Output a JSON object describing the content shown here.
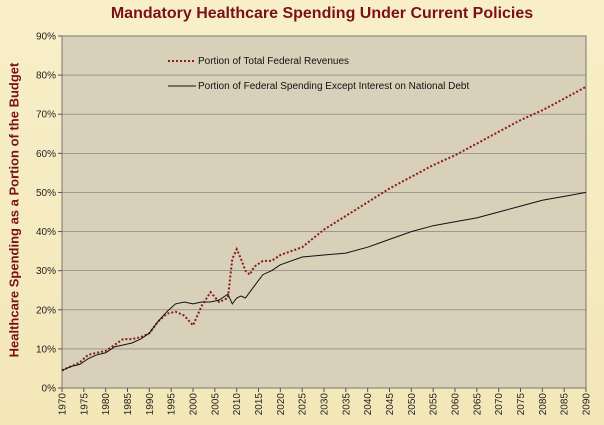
{
  "chart_data": {
    "type": "line",
    "title": "Mandatory Healthcare  Spending Under Current Policies",
    "ylabel": "Healthcare Spending as a Portion of the Budget",
    "xlabel": "",
    "xlim": [
      1970,
      2090
    ],
    "ylim": [
      0,
      90
    ],
    "y_ticks": [
      "0%",
      "10%",
      "20%",
      "30%",
      "40%",
      "50%",
      "60%",
      "70%",
      "80%",
      "90%"
    ],
    "x_ticks": [
      "1970",
      "1975",
      "1980",
      "1985",
      "1990",
      "1995",
      "2000",
      "2005",
      "2010",
      "2015",
      "2020",
      "2025",
      "2030",
      "2035",
      "2040",
      "2045",
      "2050",
      "2055",
      "2060",
      "2065",
      "2070",
      "2075",
      "2080",
      "2085",
      "2090"
    ],
    "grid": "horizontal",
    "legend_position": "top-left",
    "series": [
      {
        "name": "Portion of Total Federal Revenues",
        "style": "dotted",
        "color": "#8b1a1a",
        "points": [
          [
            1970,
            4.5
          ],
          [
            1972,
            5.5
          ],
          [
            1974,
            6.5
          ],
          [
            1976,
            8.5
          ],
          [
            1978,
            9.0
          ],
          [
            1980,
            9.5
          ],
          [
            1982,
            11.0
          ],
          [
            1984,
            12.5
          ],
          [
            1986,
            12.5
          ],
          [
            1988,
            13.0
          ],
          [
            1990,
            14.0
          ],
          [
            1992,
            17.0
          ],
          [
            1994,
            19.0
          ],
          [
            1996,
            19.5
          ],
          [
            1998,
            18.5
          ],
          [
            2000,
            16.0
          ],
          [
            2002,
            21.0
          ],
          [
            2004,
            24.5
          ],
          [
            2006,
            22.0
          ],
          [
            2008,
            23.0
          ],
          [
            2009,
            33.0
          ],
          [
            2010,
            35.5
          ],
          [
            2011,
            33.0
          ],
          [
            2012,
            30.0
          ],
          [
            2013,
            29.0
          ],
          [
            2014,
            31.0
          ],
          [
            2016,
            32.5
          ],
          [
            2018,
            32.5
          ],
          [
            2020,
            34.0
          ],
          [
            2025,
            36.0
          ],
          [
            2030,
            40.5
          ],
          [
            2035,
            44.0
          ],
          [
            2040,
            47.5
          ],
          [
            2045,
            51.0
          ],
          [
            2050,
            54.0
          ],
          [
            2055,
            57.0
          ],
          [
            2060,
            59.5
          ],
          [
            2065,
            62.5
          ],
          [
            2070,
            65.5
          ],
          [
            2075,
            68.5
          ],
          [
            2080,
            71.0
          ],
          [
            2085,
            74.0
          ],
          [
            2090,
            77.0
          ]
        ]
      },
      {
        "name": "Portion of Federal Spending Except Interest on National Debt",
        "style": "solid",
        "color": "#111111",
        "points": [
          [
            1970,
            4.5
          ],
          [
            1972,
            5.5
          ],
          [
            1974,
            6.0
          ],
          [
            1976,
            7.5
          ],
          [
            1978,
            8.5
          ],
          [
            1980,
            9.0
          ],
          [
            1982,
            10.5
          ],
          [
            1984,
            11.0
          ],
          [
            1986,
            11.5
          ],
          [
            1988,
            12.5
          ],
          [
            1990,
            14.0
          ],
          [
            1992,
            17.0
          ],
          [
            1994,
            19.5
          ],
          [
            1996,
            21.5
          ],
          [
            1998,
            22.0
          ],
          [
            2000,
            21.5
          ],
          [
            2002,
            22.0
          ],
          [
            2004,
            22.0
          ],
          [
            2006,
            22.5
          ],
          [
            2008,
            24.0
          ],
          [
            2009,
            21.5
          ],
          [
            2010,
            23.0
          ],
          [
            2011,
            23.5
          ],
          [
            2012,
            23.0
          ],
          [
            2014,
            26.0
          ],
          [
            2016,
            29.0
          ],
          [
            2018,
            30.0
          ],
          [
            2020,
            31.5
          ],
          [
            2025,
            33.5
          ],
          [
            2030,
            34.0
          ],
          [
            2035,
            34.5
          ],
          [
            2040,
            36.0
          ],
          [
            2045,
            38.0
          ],
          [
            2050,
            40.0
          ],
          [
            2055,
            41.5
          ],
          [
            2060,
            42.5
          ],
          [
            2065,
            43.5
          ],
          [
            2070,
            45.0
          ],
          [
            2075,
            46.5
          ],
          [
            2080,
            48.0
          ],
          [
            2085,
            49.0
          ],
          [
            2090,
            50.0
          ]
        ]
      }
    ]
  }
}
